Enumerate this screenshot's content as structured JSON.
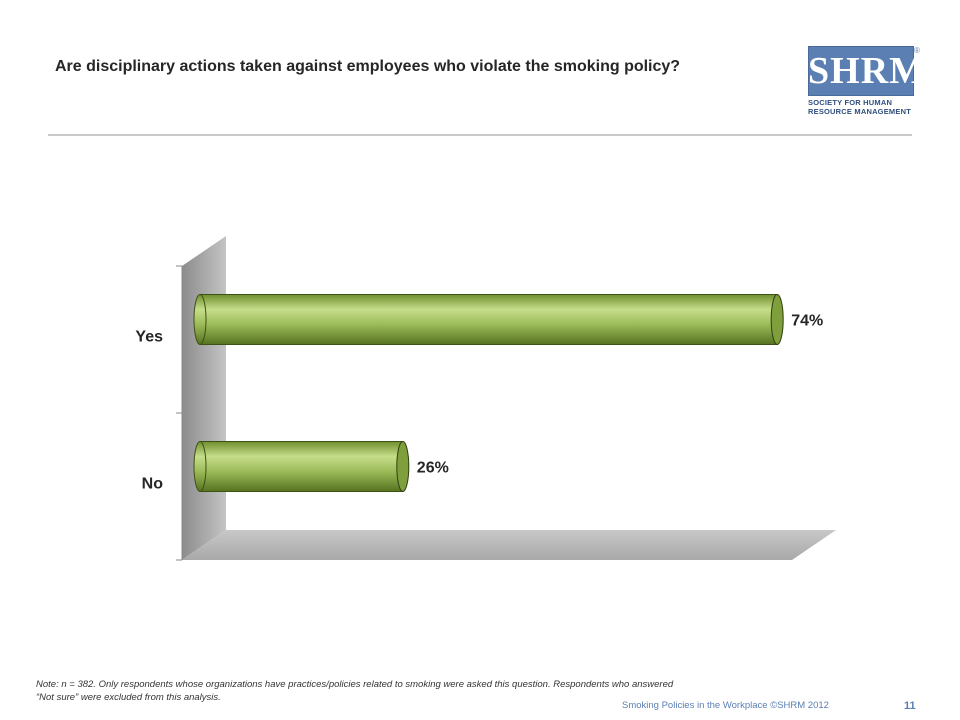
{
  "slide": {
    "title": "Are disciplinary actions taken against employees who violate the smoking policy?",
    "note_line1": "Note: n = 382. Only respondents whose organizations have practices/policies related to smoking were asked this question. Respondents who answered",
    "note_line2": "“Not sure” were excluded from this analysis.",
    "footer": "Smoking Policies in the Workplace ©SHRM 2012",
    "page_number": "11"
  },
  "logo": {
    "word": "SHRM",
    "registered": "®",
    "line1": "SOCIETY FOR HUMAN",
    "line2": "RESOURCE MANAGEMENT"
  },
  "chart_data": {
    "type": "bar",
    "orientation": "horizontal",
    "categories": [
      "Yes",
      "No"
    ],
    "values": [
      74,
      26
    ],
    "value_labels": [
      "74%",
      "26%"
    ],
    "xlim": [
      0,
      100
    ],
    "bar_color": "#9bbb59",
    "title": "",
    "xlabel": "",
    "ylabel": "",
    "grid": false,
    "legend": "none",
    "style": "3d-cylinder"
  }
}
